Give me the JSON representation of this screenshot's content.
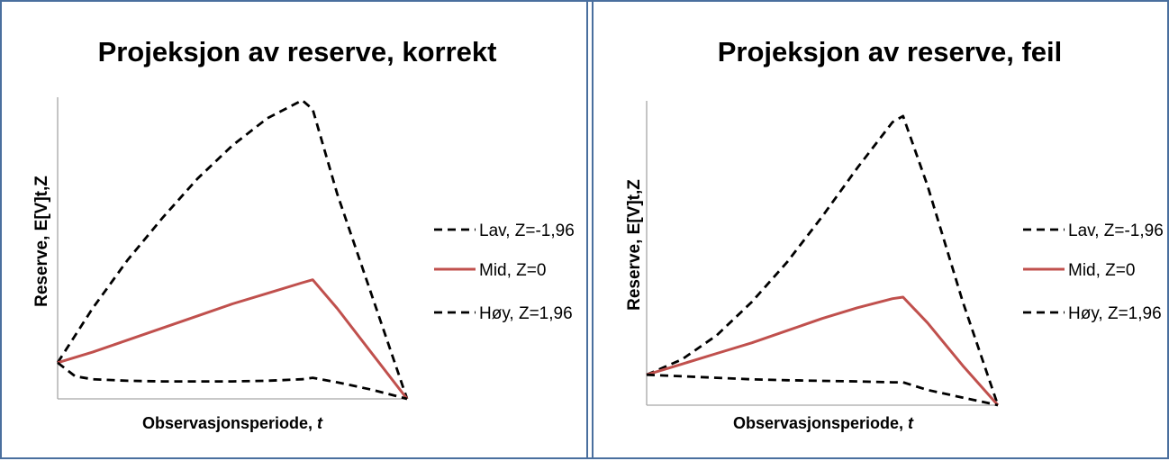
{
  "chart_data": [
    {
      "type": "line",
      "title": "Projeksjon av reserve, korrekt",
      "xlabel": "Observasjonsperiode, ",
      "xlabel_italic": "t",
      "ylabel": "Reserve, E[V]t,Z",
      "xlim": [
        0,
        10
      ],
      "ylim": [
        0,
        10
      ],
      "series": [
        {
          "name": "Lav, Z=-1,96",
          "color": "#000000",
          "dash": true,
          "x": [
            0,
            1,
            2,
            3,
            4,
            5,
            6,
            7,
            7.3,
            8,
            9,
            10
          ],
          "y": [
            1.2,
            3.0,
            4.6,
            6.0,
            7.3,
            8.4,
            9.3,
            9.9,
            9.6,
            6.8,
            3.4,
            0.0
          ]
        },
        {
          "name": "Mid, Z=0",
          "color": "#c0504d",
          "dash": false,
          "x": [
            0,
            1,
            2,
            3,
            4,
            5,
            6,
            7,
            7.3,
            8,
            9,
            10
          ],
          "y": [
            1.2,
            1.55,
            1.95,
            2.35,
            2.75,
            3.15,
            3.5,
            3.85,
            3.95,
            3.0,
            1.5,
            0.0
          ]
        },
        {
          "name": "Høy, Z=1,96",
          "color": "#000000",
          "dash": true,
          "x": [
            0,
            0.5,
            1,
            2,
            3,
            4,
            5,
            6,
            7,
            7.3,
            8,
            9,
            10
          ],
          "y": [
            1.2,
            0.75,
            0.65,
            0.6,
            0.58,
            0.58,
            0.58,
            0.6,
            0.65,
            0.7,
            0.55,
            0.3,
            0.0
          ]
        }
      ]
    },
    {
      "type": "line",
      "title": "Projeksjon av reserve, feil",
      "xlabel": "Observasjonsperiode, ",
      "xlabel_italic": "t",
      "ylabel": "Reserve, E[V]t,Z",
      "xlim": [
        0,
        10
      ],
      "ylim": [
        0,
        10
      ],
      "series": [
        {
          "name": "Lav, Z=-1,96",
          "color": "#000000",
          "dash": true,
          "x": [
            0,
            1,
            2,
            3,
            4,
            5,
            6,
            7,
            7.3,
            8,
            9,
            10
          ],
          "y": [
            1.0,
            1.5,
            2.3,
            3.4,
            4.7,
            6.2,
            7.8,
            9.3,
            9.5,
            7.2,
            3.4,
            0.0
          ]
        },
        {
          "name": "Mid, Z=0",
          "color": "#c0504d",
          "dash": false,
          "x": [
            0,
            1,
            2,
            3,
            4,
            5,
            6,
            7,
            7.3,
            8,
            9,
            10
          ],
          "y": [
            1.0,
            1.35,
            1.7,
            2.05,
            2.45,
            2.85,
            3.2,
            3.5,
            3.55,
            2.7,
            1.3,
            0.0
          ]
        },
        {
          "name": "Høy, Z=1,96",
          "color": "#000000",
          "dash": true,
          "x": [
            0,
            1,
            2,
            3,
            4,
            5,
            6,
            7,
            7.3,
            8,
            9,
            10
          ],
          "y": [
            1.0,
            0.95,
            0.9,
            0.85,
            0.82,
            0.8,
            0.78,
            0.75,
            0.75,
            0.5,
            0.25,
            0.0
          ]
        }
      ]
    }
  ]
}
